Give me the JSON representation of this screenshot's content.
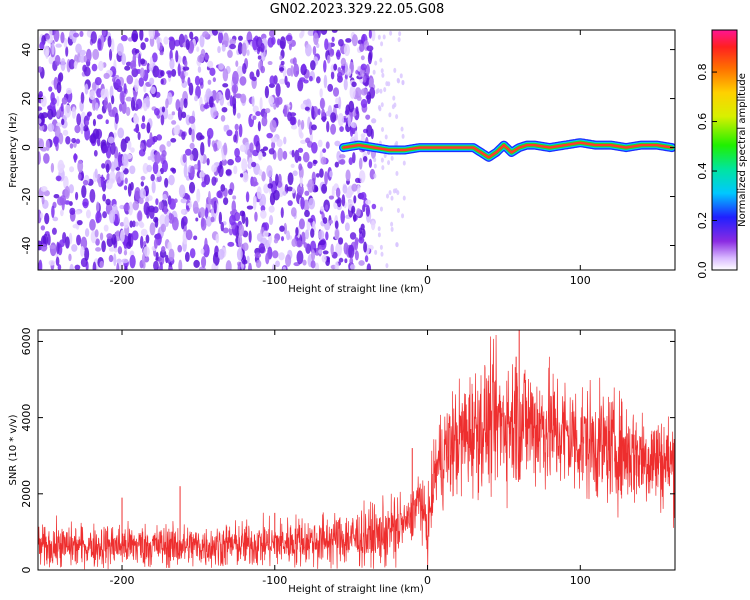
{
  "figure_title": "GN02.2023.329.22.05.G08",
  "chart_data": [
    {
      "type": "heatmap",
      "xlabel": "Height of straight line (km)",
      "ylabel": "Frequency (Hz)",
      "xlim": [
        -255,
        162
      ],
      "ylim": [
        -50,
        48
      ],
      "x_ticks": [
        -200,
        -100,
        0,
        100
      ],
      "x_tick_labels": [
        "-200",
        "-100",
        "0",
        "100"
      ],
      "y_ticks": [
        -40,
        -20,
        0,
        20,
        40
      ],
      "y_tick_labels": [
        "-40",
        "-20",
        "0",
        "20",
        "40"
      ],
      "colorbar": {
        "label": "Normalized spectral amplitude",
        "range": [
          0,
          0.97
        ],
        "ticks": [
          0.0,
          0.2,
          0.4,
          0.6,
          0.8
        ],
        "tick_labels": [
          "0.0",
          "0.2",
          "0.4",
          "0.6",
          "0.8"
        ]
      },
      "noise_region_x": [
        -255,
        -35
      ],
      "sparse_region_x": [
        -35,
        -15
      ],
      "signal_trace": {
        "x": [
          -55,
          -45,
          -35,
          -25,
          -15,
          -5,
          5,
          15,
          25,
          30,
          35,
          40,
          45,
          50,
          55,
          60,
          65,
          70,
          80,
          90,
          100,
          110,
          120,
          130,
          140,
          150,
          160
        ],
        "y": [
          0,
          1,
          0,
          -1,
          -1,
          0,
          0,
          0,
          0,
          0,
          -2,
          -4,
          -2,
          1,
          -2,
          0,
          1,
          1,
          0,
          1,
          2,
          1,
          1,
          0,
          1,
          1,
          0
        ]
      },
      "grid": false
    },
    {
      "type": "line",
      "xlabel": "Height of straight line (km)",
      "ylabel": "SNR (10 * v/v)",
      "xlim": [
        -255,
        162
      ],
      "ylim": [
        0,
        6300
      ],
      "x_ticks": [
        -200,
        -100,
        0,
        100
      ],
      "x_tick_labels": [
        "-200",
        "-100",
        "0",
        "100"
      ],
      "y_ticks": [
        0,
        2000,
        4000,
        6000
      ],
      "y_tick_labels": [
        "0",
        "2000",
        "4000",
        "6000"
      ],
      "color": "#ee2e2e",
      "envelope": {
        "x": [
          -255,
          -200,
          -150,
          -100,
          -60,
          -30,
          -12,
          -5,
          0,
          5,
          10,
          20,
          30,
          45,
          60,
          80,
          100,
          120,
          140,
          162
        ],
        "y": [
          600,
          650,
          620,
          700,
          800,
          900,
          1300,
          1900,
          1000,
          2600,
          3000,
          3400,
          3700,
          3900,
          3950,
          3700,
          3400,
          3200,
          3000,
          2800
        ]
      },
      "spikes": [
        {
          "x": -200,
          "y": 1900
        },
        {
          "x": -162,
          "y": 2200
        },
        {
          "x": -100,
          "y": 1500
        },
        {
          "x": -10,
          "y": 3200
        },
        {
          "x": 60,
          "y": 6300
        },
        {
          "x": 58,
          "y": 5600
        }
      ],
      "grid": false
    }
  ]
}
